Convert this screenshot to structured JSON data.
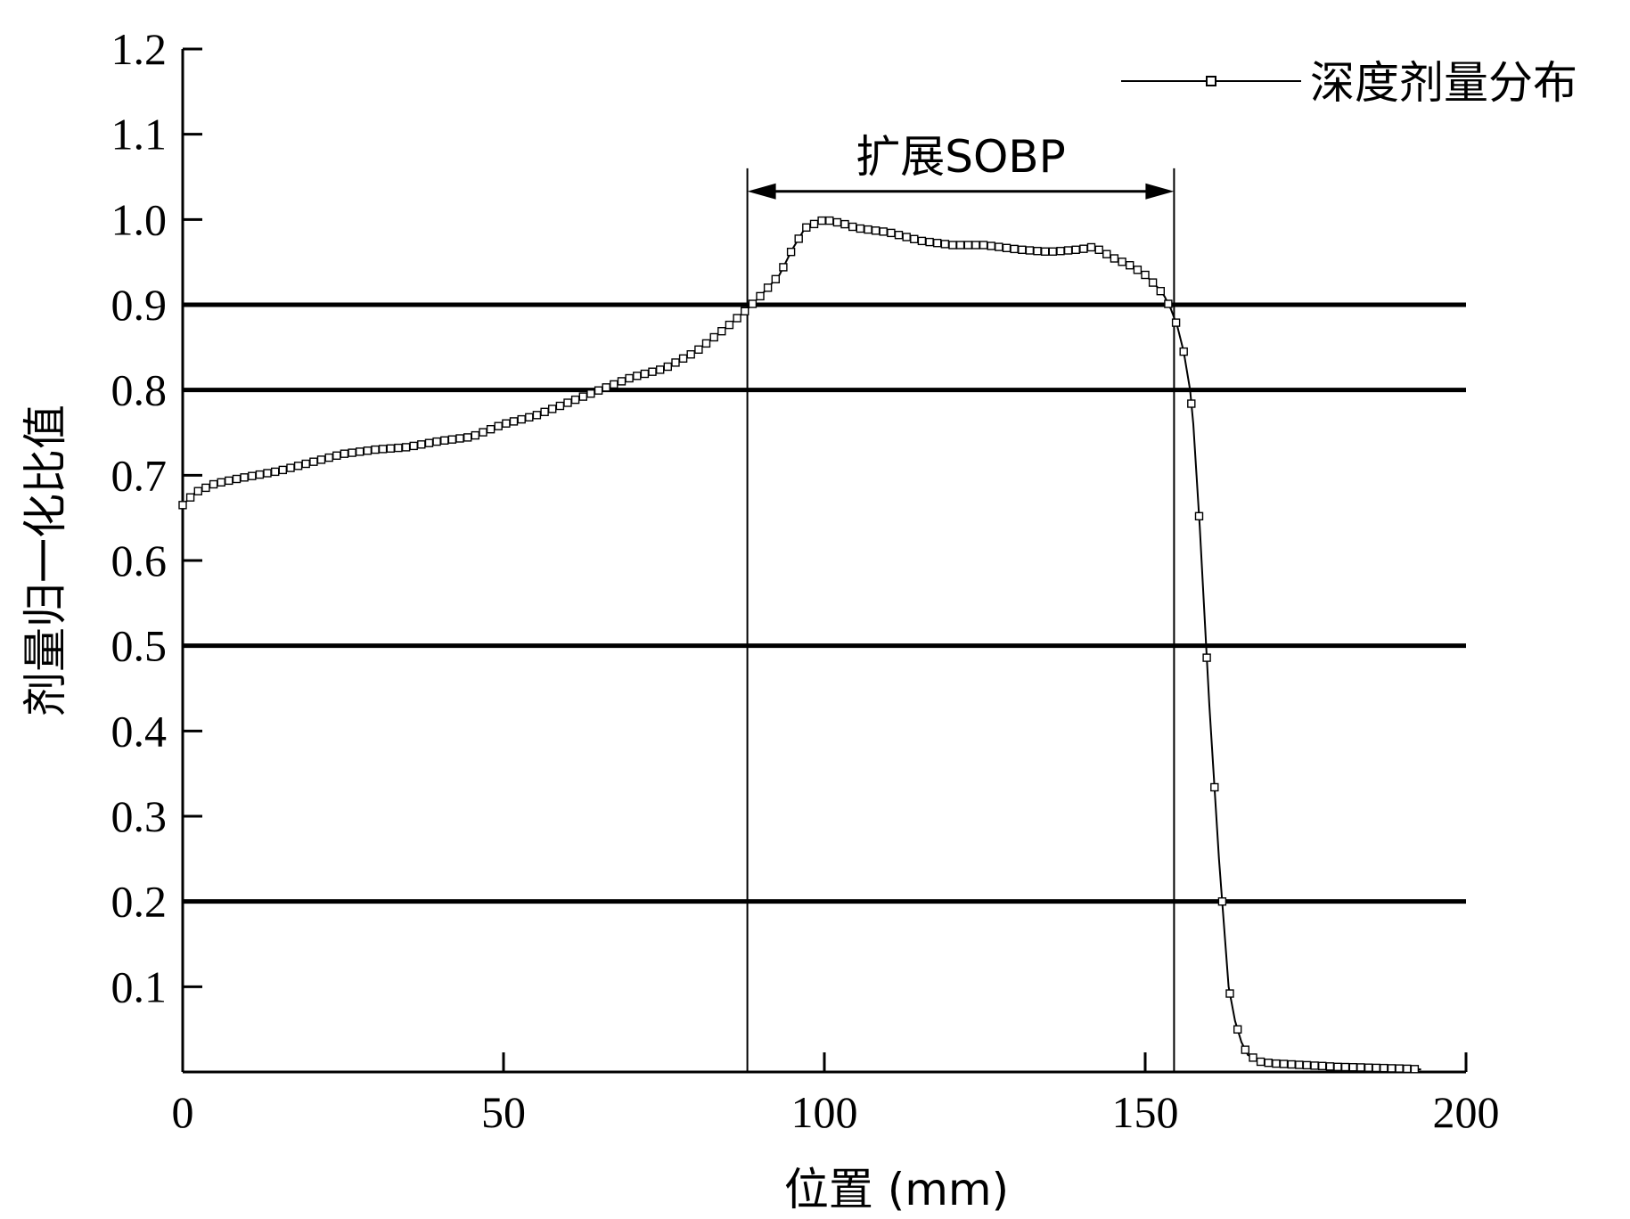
{
  "chart_data": {
    "type": "line",
    "xlabel": "位置 (mm)",
    "ylabel": "剂量归一化比值",
    "xlim": [
      0,
      200
    ],
    "ylim": [
      0,
      1.2
    ],
    "x_ticks": [
      0,
      50,
      100,
      150,
      200
    ],
    "x_tick_labels": [
      "0",
      "50",
      "100",
      "150",
      "200"
    ],
    "y_ticks": [
      0.1,
      0.2,
      0.3,
      0.4,
      0.5,
      0.6,
      0.7,
      0.8,
      0.9,
      1.0,
      1.1,
      1.2
    ],
    "y_tick_labels": [
      "0.1",
      "0.2",
      "0.3",
      "0.4",
      "0.5",
      "0.6",
      "0.7",
      "0.8",
      "0.9",
      "1.0",
      "1.1",
      "1.2"
    ],
    "legend_position": "top-right",
    "grid": false,
    "series": [
      {
        "name": "深度剂量分布",
        "marker": "open-square",
        "color": "#000000",
        "x": [
          0,
          2,
          5,
          8,
          10,
          15,
          20,
          25,
          30,
          35,
          40,
          45,
          50,
          55,
          60,
          65,
          70,
          75,
          80,
          85,
          88,
          90,
          93,
          95,
          97,
          100,
          103,
          105,
          110,
          115,
          120,
          125,
          130,
          135,
          140,
          142,
          145,
          148,
          150,
          152,
          153,
          154,
          155,
          156,
          157,
          157.5,
          158,
          158.5,
          159,
          159.5,
          160,
          160.5,
          161,
          161.5,
          162,
          162.5,
          163,
          164,
          165,
          166,
          168,
          170,
          175,
          180,
          185,
          190,
          193
        ],
        "y": [
          0.665,
          0.68,
          0.69,
          0.695,
          0.698,
          0.705,
          0.715,
          0.725,
          0.73,
          0.733,
          0.74,
          0.745,
          0.76,
          0.77,
          0.785,
          0.8,
          0.815,
          0.825,
          0.845,
          0.875,
          0.895,
          0.91,
          0.935,
          0.965,
          0.99,
          1.0,
          0.995,
          0.99,
          0.985,
          0.975,
          0.97,
          0.97,
          0.965,
          0.962,
          0.965,
          0.968,
          0.955,
          0.945,
          0.935,
          0.92,
          0.91,
          0.895,
          0.875,
          0.845,
          0.8,
          0.76,
          0.7,
          0.64,
          0.57,
          0.5,
          0.43,
          0.37,
          0.31,
          0.25,
          0.2,
          0.15,
          0.1,
          0.06,
          0.035,
          0.02,
          0.012,
          0.01,
          0.008,
          0.006,
          0.005,
          0.004,
          0.003
        ]
      }
    ],
    "reference_lines": [
      0.2,
      0.5,
      0.8,
      0.9
    ],
    "sobp_bounds": [
      88,
      154.5
    ],
    "annotations": [
      {
        "text": "扩展SOBP",
        "type": "double-arrow",
        "x_range": [
          88,
          154.5
        ]
      }
    ]
  }
}
